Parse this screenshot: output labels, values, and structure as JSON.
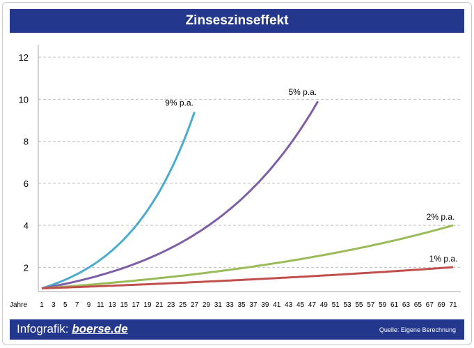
{
  "header": {
    "title": "Zinseszinseffekt"
  },
  "footer": {
    "brand_label": "Infografik:",
    "brand_logo": "boerse.de",
    "source": "Quelle: Eigene Berechnung"
  },
  "colors": {
    "bar": "#23378c",
    "grid": "#bfbfbf",
    "series_9": "#4aaccc",
    "series_5": "#7f5ea8",
    "series_2": "#9bbb59",
    "series_1": "#c0504d"
  },
  "chart_data": {
    "type": "line",
    "title": "Zinseszinseffekt",
    "xlabel": "Jahre",
    "ylabel": "",
    "xlim": [
      1,
      71
    ],
    "ylim": [
      0.85,
      12.6
    ],
    "yticks": [
      2,
      4,
      6,
      8,
      10,
      12
    ],
    "xticks": [
      1,
      3,
      5,
      7,
      9,
      11,
      13,
      15,
      17,
      19,
      21,
      23,
      25,
      27,
      29,
      31,
      33,
      35,
      37,
      39,
      41,
      43,
      45,
      47,
      49,
      51,
      53,
      55,
      57,
      59,
      61,
      63,
      65,
      67,
      69,
      71
    ],
    "grid": true,
    "series": [
      {
        "name": "9% p.a.",
        "rate": 0.09,
        "years": [
          1,
          27
        ],
        "color": "#4aaccc"
      },
      {
        "name": "5% p.a.",
        "rate": 0.05,
        "years": [
          1,
          48
        ],
        "color": "#7f5ea8"
      },
      {
        "name": "2% p.a.",
        "rate": 0.02,
        "years": [
          1,
          71
        ],
        "color": "#9bbb59"
      },
      {
        "name": "1% p.a.",
        "rate": 0.01,
        "years": [
          1,
          71
        ],
        "color": "#c0504d"
      }
    ]
  }
}
